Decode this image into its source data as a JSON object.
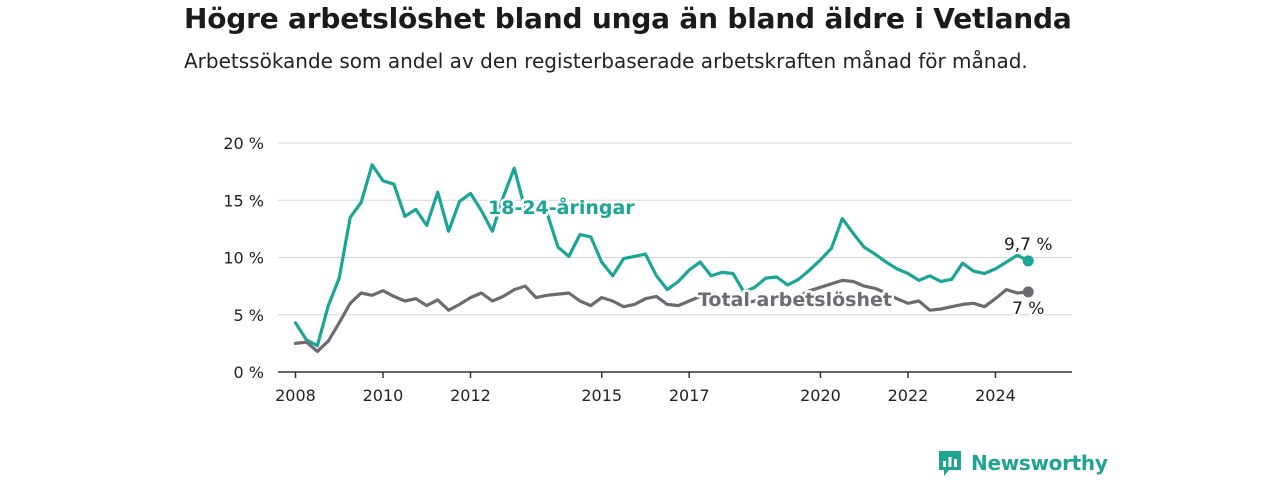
{
  "header": {
    "title": "Högre arbetslöshet bland unga än bland äldre i Vetlanda",
    "subtitle": "Arbetssökande som andel av den registerbaserade arbetskraften månad för månad."
  },
  "brand": {
    "name": "Newsworthy",
    "color": "#1fa393"
  },
  "chart_data": {
    "type": "line",
    "y_ticks": [
      {
        "value": 0,
        "label": "0 %"
      },
      {
        "value": 5,
        "label": "5 %"
      },
      {
        "value": 10,
        "label": "10 %"
      },
      {
        "value": 15,
        "label": "15 %"
      },
      {
        "value": 20,
        "label": "20 %"
      }
    ],
    "x_ticks": [
      {
        "value": 2008,
        "label": "2008"
      },
      {
        "value": 2010,
        "label": "2010"
      },
      {
        "value": 2012,
        "label": "2012"
      },
      {
        "value": 2015,
        "label": "2015"
      },
      {
        "value": 2017,
        "label": "2017"
      },
      {
        "value": 2020,
        "label": "2020"
      },
      {
        "value": 2022,
        "label": "2022"
      },
      {
        "value": 2024,
        "label": "2024"
      }
    ],
    "xlim": [
      2007.6,
      2025.75
    ],
    "ylim": [
      0,
      20
    ],
    "grid": "horizontal",
    "series": [
      {
        "name": "18-24-åringar",
        "color": "#1aa596",
        "end_label": "9,7 %",
        "x": [
          2008.0,
          2008.25,
          2008.5,
          2008.75,
          2009.0,
          2009.25,
          2009.5,
          2009.75,
          2010.0,
          2010.25,
          2010.5,
          2010.75,
          2011.0,
          2011.25,
          2011.5,
          2011.75,
          2012.0,
          2012.25,
          2012.5,
          2012.75,
          2013.0,
          2013.25,
          2013.5,
          2013.75,
          2014.0,
          2014.25,
          2014.5,
          2014.75,
          2015.0,
          2015.25,
          2015.5,
          2015.75,
          2016.0,
          2016.25,
          2016.5,
          2016.75,
          2017.0,
          2017.25,
          2017.5,
          2017.75,
          2018.0,
          2018.25,
          2018.5,
          2018.75,
          2019.0,
          2019.25,
          2019.5,
          2019.75,
          2020.0,
          2020.25,
          2020.5,
          2020.75,
          2021.0,
          2021.25,
          2021.5,
          2021.75,
          2022.0,
          2022.25,
          2022.5,
          2022.75,
          2023.0,
          2023.25,
          2023.5,
          2023.75,
          2024.0,
          2024.25,
          2024.5,
          2024.75
        ],
        "values": [
          4.3,
          2.8,
          2.3,
          5.8,
          8.2,
          13.5,
          14.8,
          18.1,
          16.7,
          16.4,
          13.6,
          14.2,
          12.8,
          15.7,
          12.3,
          14.9,
          15.6,
          14.1,
          12.3,
          15.3,
          17.8,
          14.2,
          14.1,
          13.9,
          10.9,
          10.1,
          12.0,
          11.8,
          9.6,
          8.4,
          9.9,
          10.1,
          10.3,
          8.4,
          7.2,
          7.9,
          8.9,
          9.6,
          8.4,
          8.7,
          8.6,
          7.0,
          7.4,
          8.2,
          8.3,
          7.6,
          8.1,
          8.9,
          9.8,
          10.8,
          13.4,
          12.1,
          10.9,
          10.3,
          9.6,
          9.0,
          8.6,
          8.0,
          8.4,
          7.9,
          8.1,
          9.5,
          8.8,
          8.6,
          9.0,
          9.6,
          10.2,
          9.7
        ]
      },
      {
        "name": "Total arbetslöshet",
        "color": "#6e6a72",
        "end_label": "7 %",
        "x": [
          2008.0,
          2008.25,
          2008.5,
          2008.75,
          2009.0,
          2009.25,
          2009.5,
          2009.75,
          2010.0,
          2010.25,
          2010.5,
          2010.75,
          2011.0,
          2011.25,
          2011.5,
          2011.75,
          2012.0,
          2012.25,
          2012.5,
          2012.75,
          2013.0,
          2013.25,
          2013.5,
          2013.75,
          2014.0,
          2014.25,
          2014.5,
          2014.75,
          2015.0,
          2015.25,
          2015.5,
          2015.75,
          2016.0,
          2016.25,
          2016.5,
          2016.75,
          2017.0,
          2017.25,
          2017.5,
          2017.75,
          2018.0,
          2018.25,
          2018.5,
          2018.75,
          2019.0,
          2019.25,
          2019.5,
          2019.75,
          2020.0,
          2020.25,
          2020.5,
          2020.75,
          2021.0,
          2021.25,
          2021.5,
          2021.75,
          2022.0,
          2022.25,
          2022.5,
          2022.75,
          2023.0,
          2023.25,
          2023.5,
          2023.75,
          2024.0,
          2024.25,
          2024.5,
          2024.75
        ],
        "values": [
          2.5,
          2.6,
          1.8,
          2.7,
          4.3,
          6.0,
          6.9,
          6.7,
          7.1,
          6.6,
          6.2,
          6.4,
          5.8,
          6.3,
          5.4,
          5.9,
          6.5,
          6.9,
          6.2,
          6.6,
          7.2,
          7.5,
          6.5,
          6.7,
          6.8,
          6.9,
          6.2,
          5.8,
          6.5,
          6.2,
          5.7,
          5.9,
          6.4,
          6.6,
          5.9,
          5.8,
          6.2,
          6.6,
          6.9,
          6.4,
          6.1,
          6.0,
          6.2,
          6.5,
          6.5,
          6.3,
          6.6,
          7.1,
          7.4,
          7.7,
          8.0,
          7.9,
          7.5,
          7.3,
          6.9,
          6.4,
          6.0,
          6.2,
          5.4,
          5.5,
          5.7,
          5.9,
          6.0,
          5.7,
          6.4,
          7.2,
          6.9,
          7.0
        ]
      }
    ]
  }
}
